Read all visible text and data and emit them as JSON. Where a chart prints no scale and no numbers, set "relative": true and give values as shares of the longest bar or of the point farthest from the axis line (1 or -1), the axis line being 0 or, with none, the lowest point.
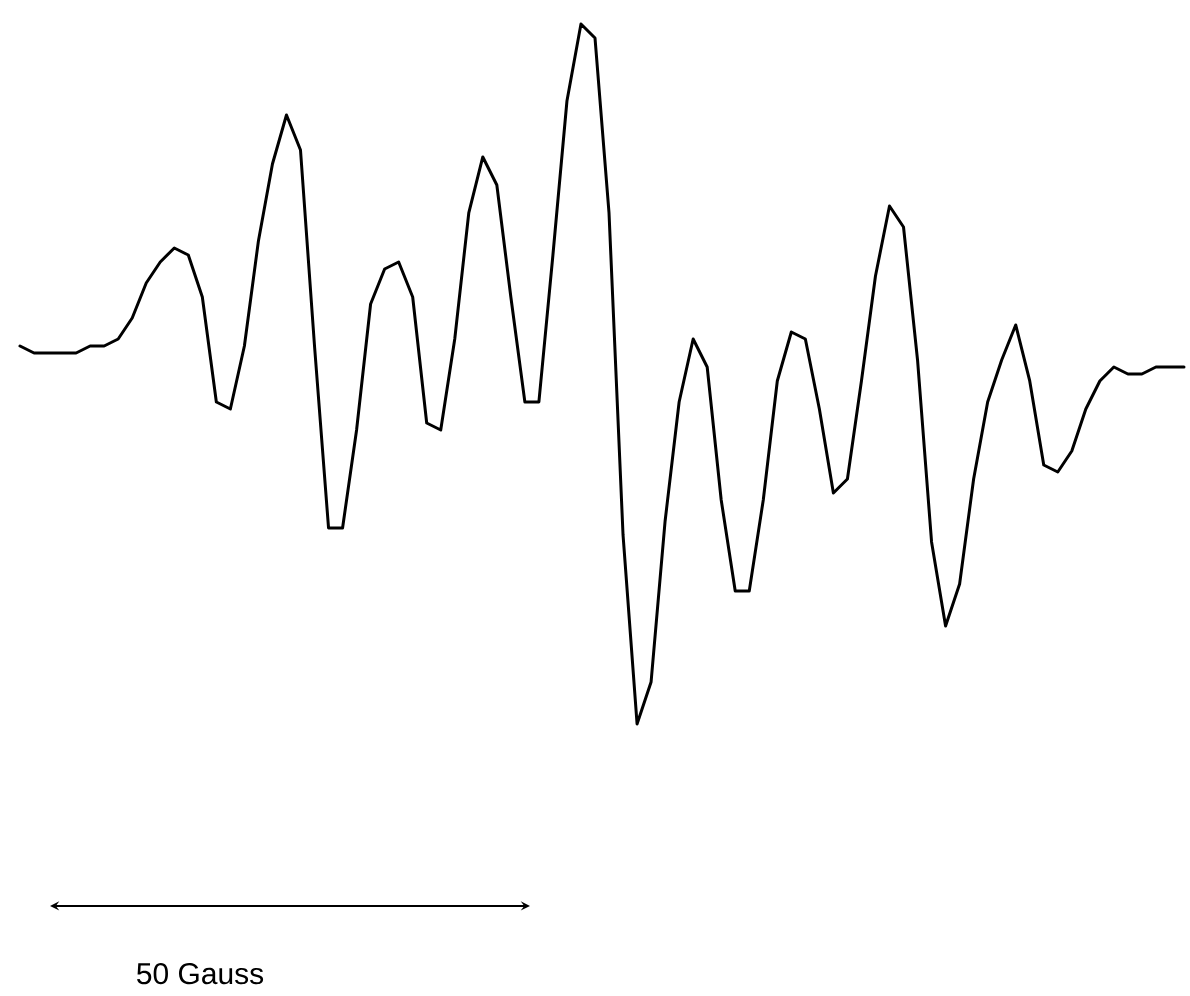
{
  "chart_data": {
    "type": "line",
    "relative": true,
    "color": "#000000",
    "line_style": "solid",
    "categories": [
      null,
      null,
      null,
      null,
      null,
      null,
      null,
      null,
      null,
      null,
      null,
      null,
      null,
      null,
      null,
      null,
      null,
      null,
      null,
      null,
      null,
      null,
      null,
      null,
      null,
      null,
      null,
      null,
      null,
      null,
      null,
      null,
      null,
      null,
      null,
      null,
      null,
      null,
      null,
      null,
      null,
      null,
      null,
      null,
      null,
      null,
      null,
      null,
      null,
      null,
      null,
      null,
      null,
      null,
      null,
      null,
      null,
      null,
      null,
      null,
      null,
      null,
      null,
      null,
      null,
      null,
      null,
      null,
      null,
      null,
      null,
      null,
      null,
      null,
      null,
      null,
      null,
      null,
      null,
      null,
      null,
      null,
      null,
      null
    ],
    "values": [
      0.54,
      0.53,
      0.53,
      0.53,
      0.53,
      0.54,
      0.54,
      0.55,
      0.58,
      0.63,
      0.66,
      0.68,
      0.67,
      0.61,
      0.46,
      0.45,
      0.54,
      0.69,
      0.8,
      0.87,
      0.82,
      0.54,
      0.28,
      0.28,
      0.42,
      0.6,
      0.65,
      0.66,
      0.61,
      0.43,
      0.42,
      0.55,
      0.73,
      0.81,
      0.77,
      0.61,
      0.46,
      0.46,
      0.67,
      0.89,
      1,
      0.98,
      0.73,
      0.27,
      0,
      0.06,
      0.29,
      0.46,
      0.55,
      0.51,
      0.32,
      0.19,
      0.19,
      0.32,
      0.49,
      0.56,
      0.55,
      0.45,
      0.33,
      0.35,
      0.49,
      0.64,
      0.74,
      0.71,
      0.52,
      0.26,
      0.14,
      0.2,
      0.35,
      0.46,
      0.52,
      0.57,
      0.49,
      0.37,
      0.36,
      0.39,
      0.45,
      0.49,
      0.51,
      0.5,
      0.5,
      0.51,
      0.51,
      0.51
    ],
    "annotations": [
      "50 Gauss"
    ]
  }
}
